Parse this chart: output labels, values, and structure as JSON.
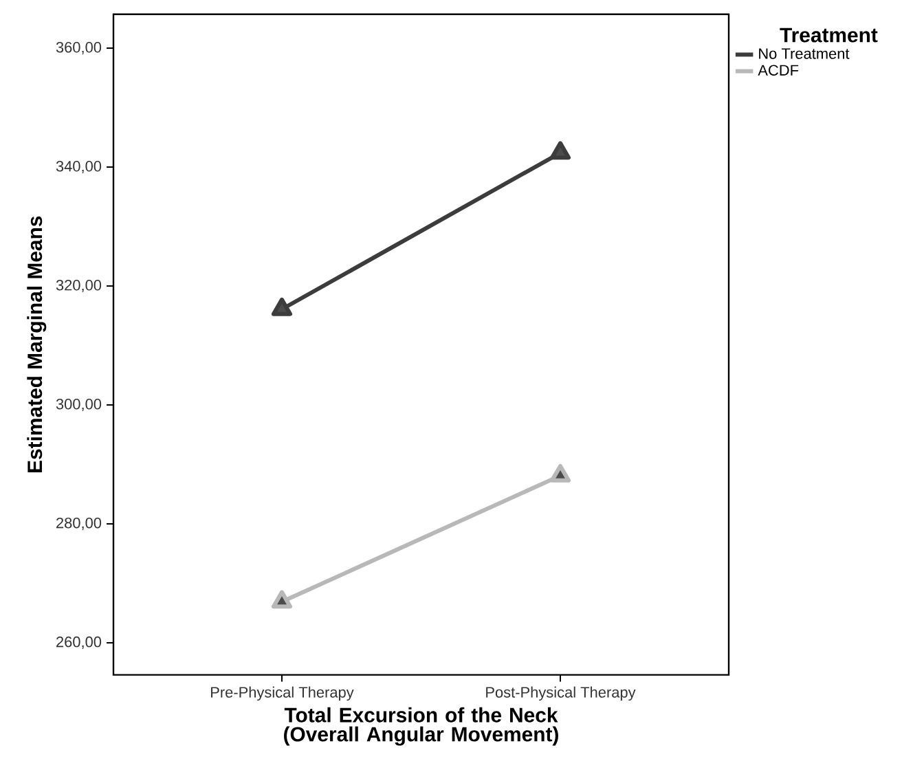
{
  "chart_data": {
    "type": "line",
    "xlabel": "Total Excursion of the Neck (Overall Angular Movement)",
    "ylabel": "Estimated Marginal Means",
    "legend_title": "Treatment",
    "categories": [
      "Pre-Physical Therapy",
      "Post-Physical Therapy"
    ],
    "series": [
      {
        "name": "No Treatment",
        "color": "#3c3c3c",
        "values": [
          316.1,
          342.4
        ]
      },
      {
        "name": "ACDF",
        "color": "#b8b8b8",
        "values": [
          266.9,
          288.1
        ]
      }
    ],
    "ylim": [
      254.6,
      365.7
    ],
    "yticks": [
      {
        "value": 260,
        "label": "260,00"
      },
      {
        "value": 280,
        "label": "280,00"
      },
      {
        "value": 300,
        "label": "300,00"
      },
      {
        "value": 320,
        "label": "320,00"
      },
      {
        "value": 340,
        "label": "340,00"
      },
      {
        "value": 360,
        "label": "360,00"
      }
    ],
    "legend": "top right",
    "marker": "triangle",
    "line_style": "solid",
    "grid": false
  }
}
